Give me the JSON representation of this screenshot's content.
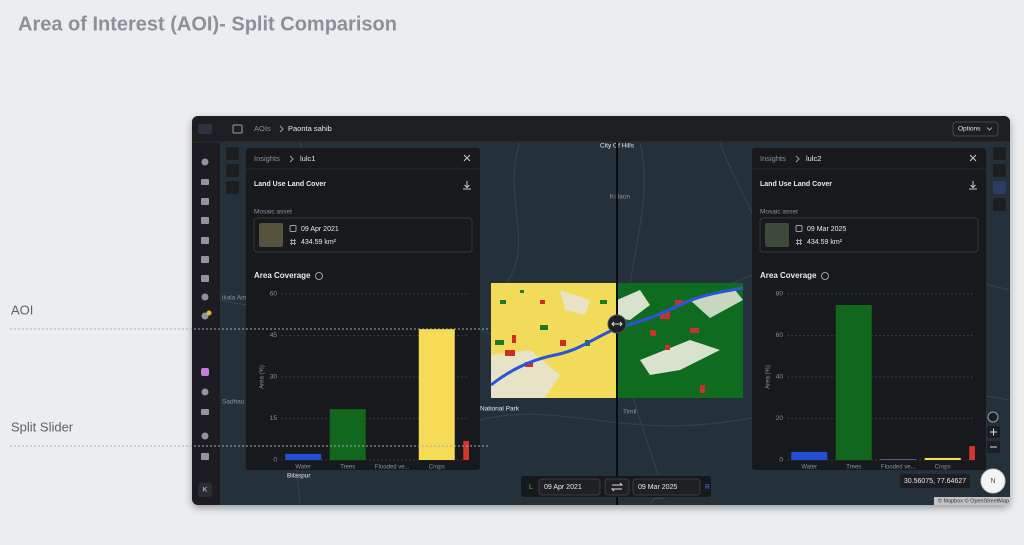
{
  "page_title": "Area of Interest (AOI)- Split Comparison",
  "callouts": [
    "AOI",
    "Split Slider"
  ],
  "app": {
    "breadcrumb": [
      "AOIs",
      "Paonta sahib"
    ],
    "options": "Options",
    "map_labels": [
      "City Of Hills",
      "Kolaon",
      "Sadhau",
      "Bilaspur",
      "National Park",
      "Timli",
      "ikala Amb"
    ],
    "panels": [
      {
        "crumb": "Insights",
        "name": "lulc1",
        "section": "Land Use Land Cover",
        "asset_label": "Mosaic asset",
        "date": "09 Apr 2021",
        "area": "434.59 km²",
        "chart_title": "Area Coverage",
        "chart_data": {
          "type": "bar",
          "y_label": "Area (%)",
          "categories": [
            "Water",
            "Trees",
            "Flooded ve...",
            "Crops",
            null
          ],
          "values": [
            2.2,
            18.4,
            0,
            47.3,
            6.9
          ],
          "colors": [
            "#2150d6",
            "#12671f",
            "#7d86c4",
            "#f6dc56",
            "#d3342c"
          ],
          "ylim": [
            0,
            60
          ],
          "yticks": [
            0,
            15,
            30,
            45,
            60
          ],
          "grid": true
        }
      },
      {
        "crumb": "Insights",
        "name": "lulc2",
        "section": "Land Use Land Cover",
        "asset_label": "Mosaic asset",
        "date": "09 Mar 2025",
        "area": "434.59 km²",
        "chart_title": "Area Coverage",
        "chart_data": {
          "type": "bar",
          "y_label": "Area (%)",
          "categories": [
            "Water",
            "Trees",
            "Flooded ve...",
            "Crops",
            null
          ],
          "values": [
            3.9,
            74.7,
            0.3,
            1,
            6.7
          ],
          "colors": [
            "#2150d6",
            "#12671f",
            "#7d86c4",
            "#f6dc56",
            "#d3342c"
          ],
          "ylim": [
            0,
            80
          ],
          "yticks": [
            0,
            20,
            40,
            60,
            80
          ],
          "grid": true
        }
      }
    ],
    "controls": {
      "left_tag": "L",
      "left_date": "09 Apr 2021",
      "right_date": "09 Mar 2025",
      "right_tag": "R"
    },
    "coords": "30.56075, 77.64627",
    "attribution": "© Mapbox © OpenStreetMap",
    "user_initial": "K",
    "compass": "N"
  }
}
